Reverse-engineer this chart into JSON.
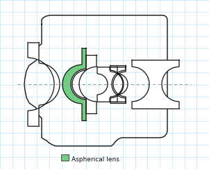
{
  "bg_color": "#ffffff",
  "grid_color": "#b8e8f8",
  "grid_lw": 0.5,
  "lens_color": "#111111",
  "aspherical_color": "#72cc82",
  "axis_color": "#aaaaaa",
  "legend_text": "Aspherical lens",
  "legend_color": "#72cc82",
  "figw": 3.01,
  "figh": 2.43,
  "dpi": 100
}
